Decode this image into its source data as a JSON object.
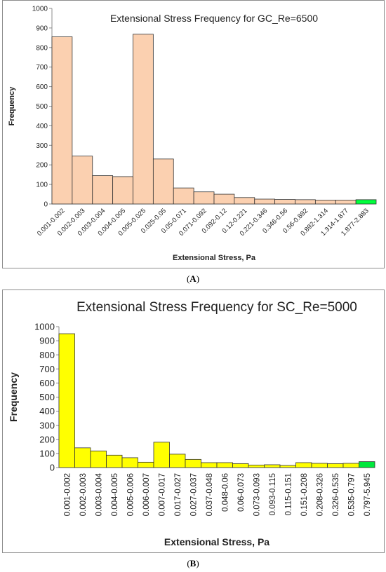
{
  "chart_data": [
    {
      "type": "bar",
      "title": "Extensional Stress Frequency for GC_Re=6500",
      "xlabel": "Extensional Stress, Pa",
      "ylabel": "Frequency",
      "ylim": [
        0,
        1000
      ],
      "yticks": [
        0,
        100,
        200,
        300,
        400,
        500,
        600,
        700,
        800,
        900,
        1000
      ],
      "grid": false,
      "categories": [
        "0.001-0.002",
        "0.002-0.003",
        "0.003-0.004",
        "0.004-0.005",
        "0.005-0.025",
        "0.025-0.05",
        "0.05-0.071",
        "0.071-0.092",
        "0.092-0.12",
        "0.12-0.221",
        "0.221-0.346",
        "0.346-0.56",
        "0.56-0.892",
        "0.892-1.314",
        "1.314-1.877",
        "1.877-2.883"
      ],
      "values": [
        855,
        245,
        145,
        140,
        868,
        230,
        82,
        62,
        50,
        33,
        25,
        23,
        22,
        20,
        20,
        22
      ],
      "bar_color": "#fbd0b0",
      "highlight_color": "#00ff3c",
      "highlight_index": 15
    },
    {
      "type": "bar",
      "title": "Extensional Stress Frequency for SC_Re=5000",
      "xlabel": "Extensional Stress, Pa",
      "ylabel": "Frequency",
      "ylim": [
        0,
        1000
      ],
      "yticks": [
        0,
        100,
        200,
        300,
        400,
        500,
        600,
        700,
        800,
        900,
        1000
      ],
      "grid": false,
      "categories": [
        "0.001-0.002",
        "0.002-0.003",
        "0.003-0.004",
        "0.004-0.005",
        "0.005-0.006",
        "0.006-0.007",
        "0.007-0.017",
        "0.017-0.027",
        "0.027-0.037",
        "0.037-0.048",
        "0.048-0.06",
        "0.06-0.073",
        "0.073-0.093",
        "0.093-0.115",
        "0.115-0.151",
        "0.151-0.208",
        "0.208-0.326",
        "0.326-0.535",
        "0.535-0.797",
        "0.797-5.945"
      ],
      "values": [
        950,
        140,
        118,
        88,
        70,
        38,
        180,
        95,
        58,
        35,
        35,
        28,
        18,
        20,
        15,
        35,
        30,
        28,
        30,
        42
      ],
      "bar_color": "#ffff00",
      "highlight_color": "#00e83c",
      "highlight_index": 19
    }
  ],
  "panels": {
    "a_label": "A",
    "b_label": "B"
  }
}
